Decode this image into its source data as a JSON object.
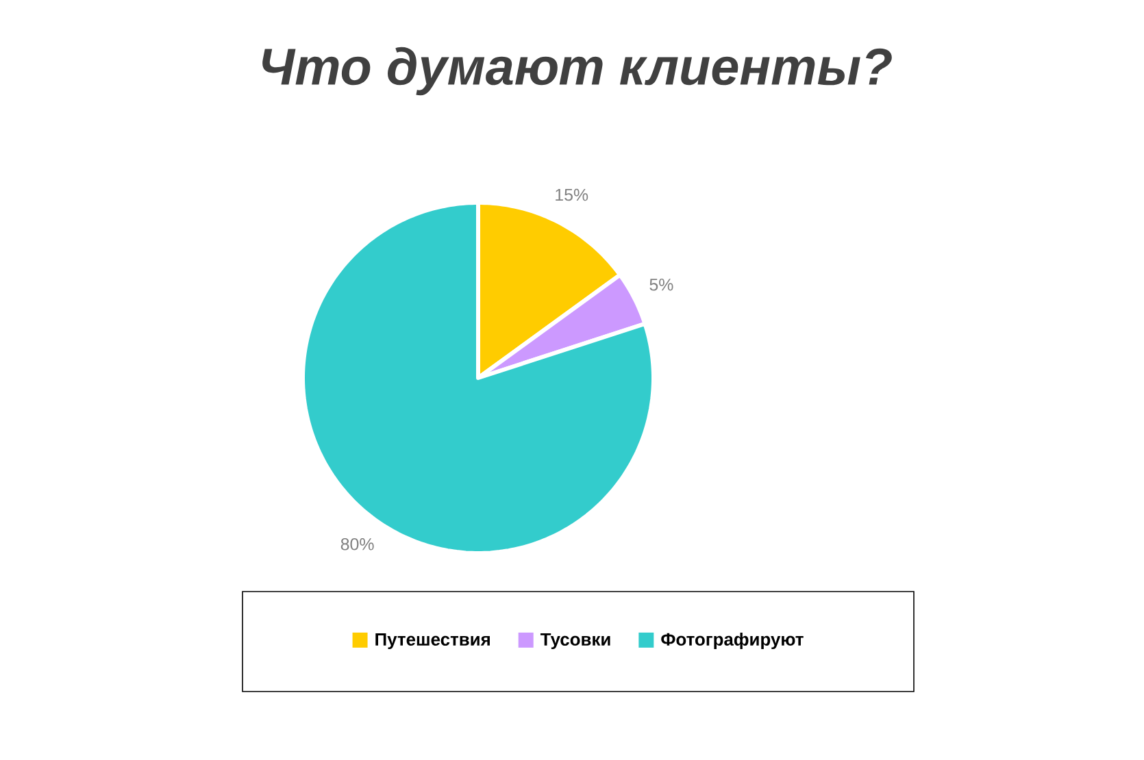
{
  "chart_data": {
    "type": "pie",
    "title": "Что думают клиенты?",
    "categories": [
      "Путешествия",
      "Тусовки",
      "Фотографируют"
    ],
    "values": [
      15,
      5,
      80
    ],
    "colors": [
      "#ffcc00",
      "#cc99ff",
      "#33cccc"
    ],
    "value_labels": [
      "15%",
      "5%",
      "80%"
    ],
    "legend": "bottom"
  }
}
